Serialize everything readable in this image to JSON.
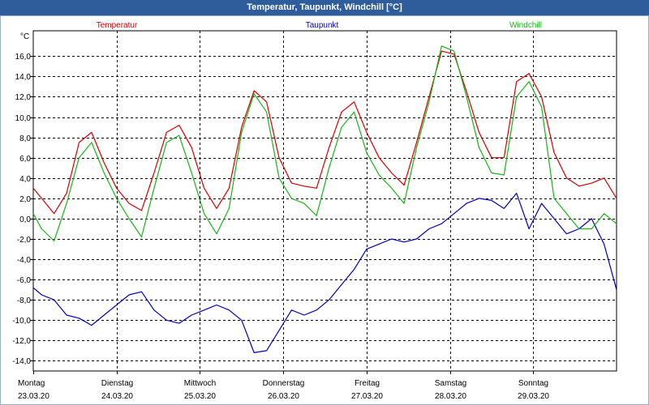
{
  "window": {
    "title": "Temperatur, Taupunkt, Windchill [°C]"
  },
  "chart_data": {
    "type": "line",
    "title": "Temperatur, Taupunkt, Windchill [°C]",
    "ylabel": "°C",
    "ylim": [
      -15,
      18.5
    ],
    "xlim": [
      0,
      7
    ],
    "grid": true,
    "y_ticks": [
      16,
      14,
      12,
      10,
      8,
      6,
      4,
      2,
      0,
      -2,
      -4,
      -6,
      -8,
      -10,
      -12,
      -14
    ],
    "y_tick_labels": [
      "16,0",
      "14,0",
      "12,0",
      "10,0",
      "8,0",
      "6,0",
      "4,0",
      "2,0",
      "0,0",
      "-2,0",
      "-4,0",
      "-6,0",
      "-8,0",
      "-10,0",
      "-12,0",
      "-14,0"
    ],
    "x_ticks": [
      {
        "day": "Montag",
        "date": "23.03.20"
      },
      {
        "day": "Dienstag",
        "date": "24.03.20"
      },
      {
        "day": "Mittwoch",
        "date": "25.03.20"
      },
      {
        "day": "Donnerstag",
        "date": "26.03.20"
      },
      {
        "day": "Freitag",
        "date": "27.03.20"
      },
      {
        "day": "Samstag",
        "date": "28.03.20"
      },
      {
        "day": "Sonntag",
        "date": "29.03.20"
      }
    ],
    "legend": [
      "Temperatur",
      "Taupunkt",
      "Windchill"
    ],
    "series": [
      {
        "name": "Temperatur",
        "color": "#d40000",
        "x": [
          0,
          0.1,
          0.25,
          0.4,
          0.55,
          0.7,
          0.85,
          1.0,
          1.15,
          1.3,
          1.45,
          1.6,
          1.75,
          1.9,
          2.05,
          2.2,
          2.35,
          2.5,
          2.65,
          2.8,
          2.95,
          3.1,
          3.25,
          3.4,
          3.55,
          3.7,
          3.85,
          4.0,
          4.15,
          4.3,
          4.45,
          4.6,
          4.75,
          4.9,
          5.05,
          5.2,
          5.35,
          5.5,
          5.65,
          5.8,
          5.95,
          6.1,
          6.25,
          6.4,
          6.55,
          6.7,
          6.85,
          7.0
        ],
        "y": [
          3.0,
          2.0,
          0.5,
          2.5,
          7.5,
          8.5,
          5.5,
          3.0,
          1.5,
          0.8,
          4.5,
          8.5,
          9.2,
          7.0,
          3.0,
          1.0,
          3.0,
          9.0,
          12.6,
          11.5,
          6.0,
          3.5,
          3.2,
          3.0,
          7.0,
          10.5,
          11.5,
          8.5,
          6.0,
          4.5,
          3.3,
          7.5,
          12.0,
          16.5,
          16.2,
          12.5,
          8.5,
          6.0,
          6.0,
          13.5,
          14.3,
          12.0,
          6.5,
          4.0,
          3.2,
          3.5,
          4.0,
          2.0
        ]
      },
      {
        "name": "Taupunkt",
        "color": "#0000c0",
        "x": [
          0,
          0.1,
          0.25,
          0.4,
          0.55,
          0.7,
          0.85,
          1.0,
          1.15,
          1.3,
          1.45,
          1.6,
          1.75,
          1.9,
          2.05,
          2.2,
          2.35,
          2.5,
          2.65,
          2.8,
          2.95,
          3.1,
          3.25,
          3.4,
          3.55,
          3.7,
          3.85,
          4.0,
          4.15,
          4.3,
          4.45,
          4.6,
          4.75,
          4.9,
          5.05,
          5.2,
          5.35,
          5.5,
          5.65,
          5.8,
          5.95,
          6.1,
          6.25,
          6.4,
          6.55,
          6.7,
          6.85,
          7.0
        ],
        "y": [
          -6.8,
          -7.5,
          -8.0,
          -9.5,
          -9.8,
          -10.5,
          -9.5,
          -8.5,
          -7.5,
          -7.2,
          -9.0,
          -10.0,
          -10.3,
          -9.5,
          -9.0,
          -8.5,
          -9.0,
          -10.0,
          -13.2,
          -13.0,
          -11.0,
          -9.0,
          -9.5,
          -9.0,
          -8.0,
          -6.5,
          -5.0,
          -3.0,
          -2.5,
          -2.0,
          -2.3,
          -2.0,
          -1.0,
          -0.5,
          0.5,
          1.5,
          2.0,
          1.8,
          1.0,
          2.5,
          -1.0,
          1.5,
          0.0,
          -1.5,
          -1.0,
          0.0,
          -2.5,
          -7.0
        ]
      },
      {
        "name": "Windchill",
        "color": "#18b418",
        "x": [
          0,
          0.1,
          0.25,
          0.4,
          0.55,
          0.7,
          0.85,
          1.0,
          1.15,
          1.3,
          1.45,
          1.6,
          1.75,
          1.9,
          2.05,
          2.2,
          2.35,
          2.5,
          2.65,
          2.8,
          2.95,
          3.1,
          3.25,
          3.4,
          3.55,
          3.7,
          3.85,
          4.0,
          4.15,
          4.3,
          4.45,
          4.6,
          4.75,
          4.9,
          5.05,
          5.2,
          5.35,
          5.5,
          5.65,
          5.8,
          5.95,
          6.1,
          6.25,
          6.4,
          6.55,
          6.7,
          6.85,
          7.0
        ],
        "y": [
          0.5,
          -1.0,
          -2.2,
          1.5,
          6.0,
          7.5,
          4.5,
          2.0,
          0.0,
          -1.8,
          3.0,
          7.5,
          8.2,
          4.5,
          0.5,
          -1.5,
          1.0,
          8.5,
          12.3,
          10.5,
          4.0,
          2.0,
          1.5,
          0.3,
          5.0,
          9.0,
          10.5,
          6.5,
          4.3,
          3.0,
          1.5,
          7.0,
          11.5,
          17.0,
          16.5,
          12.0,
          7.0,
          4.5,
          4.3,
          12.0,
          13.5,
          11.0,
          2.0,
          0.5,
          -1.0,
          -1.0,
          0.5,
          -0.5
        ]
      }
    ]
  }
}
